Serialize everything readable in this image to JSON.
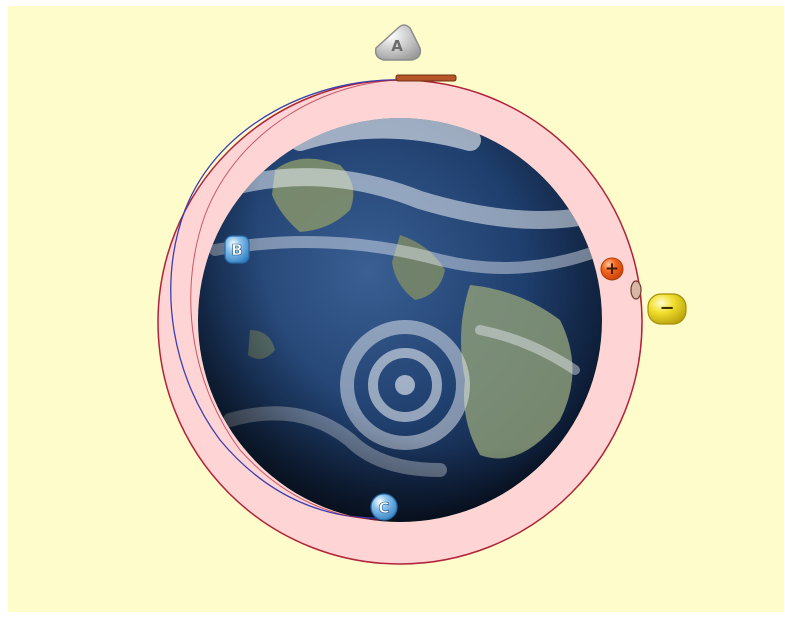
{
  "scene": {
    "labels": {
      "a": "A",
      "b": "B",
      "c": "C",
      "plus": "+",
      "minus": "−"
    },
    "colors": {
      "background": "#fffccc",
      "orbit_band": "#ffd4d4",
      "orbit_line": "#b0233a",
      "transfer_orbit_line": "#3b3fb0",
      "ocean_dark": "#0d1a2e",
      "ocean_mid": "#1f3f6e",
      "land": "#8a9a78",
      "clouds": "#e9eef4",
      "thruster_bar": "#b5552a",
      "badge_gray": "#b8b8b8",
      "badge_blue": "#4a9bd6",
      "badge_orange": "#f2661c",
      "badge_yellow": "#f2df2e"
    },
    "icons": {
      "earth": "earth-globe-icon",
      "a": "point-a-badge-icon",
      "b": "point-b-badge-icon",
      "c": "point-c-badge-icon",
      "plus": "speed-up-button-icon",
      "minus": "slow-down-button-icon",
      "thruster": "thruster-bar-icon",
      "satellite": "satellite-icon"
    }
  }
}
